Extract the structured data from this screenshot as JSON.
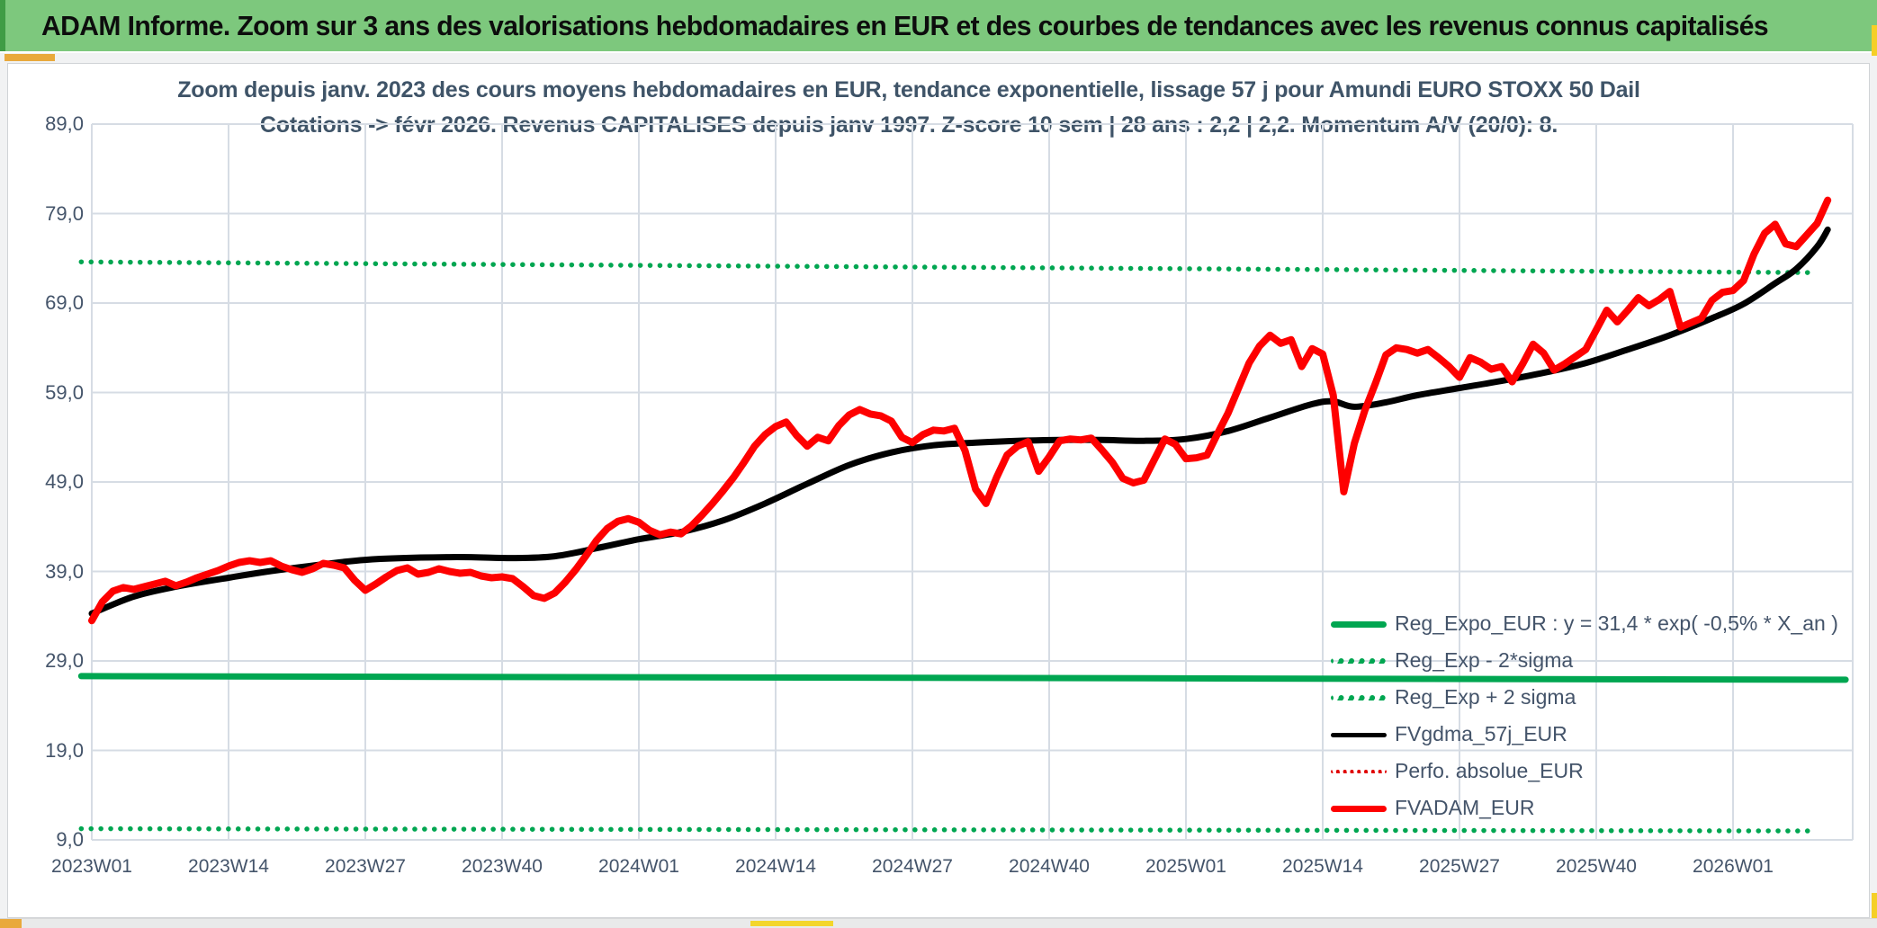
{
  "banner": {
    "title": "ADAM Informe. Zoom sur 3 ans des valorisations hebdomadaires en EUR et des courbes de tendances avec les revenus connus capitalisés"
  },
  "chart_data": {
    "type": "line",
    "title_line1": "Zoom depuis janv. 2023 des cours moyens hebdomadaires en EUR, tendance exponentielle, lissage 57 j pour Amundi EURO STOXX 50 Dail",
    "title_line2": "Cotations -> févr 2026. Revenus CAPITALISES depuis janv 1997. Z-score 10 sem | 28 ans : 2,2 | 2,2. Momentum A/V (20/0): 8.",
    "colors": {
      "green": "#00a651",
      "red": "#fe0000",
      "black": "#000000",
      "grid": "#d6dce4",
      "text": "#44546a"
    },
    "grid": true,
    "legend_position": "inside-right-bottom",
    "ylim": [
      9,
      89
    ],
    "y_tick_values": [
      89,
      79,
      69,
      59,
      49,
      39,
      29,
      19,
      9
    ],
    "y_tick_labels": [
      "89,0",
      "79,0",
      "69,0",
      "59,0",
      "49,0",
      "39,0",
      "29,0",
      "19,0",
      "9,0"
    ],
    "x_tick_labels": [
      "2023W01",
      "2023W14",
      "2023W27",
      "2023W40",
      "2024W01",
      "2024W14",
      "2024W27",
      "2024W40",
      "2025W01",
      "2025W14",
      "2025W27",
      "2025W40",
      "2026W01"
    ],
    "weeks_per_tick": 13,
    "trend_lines": [
      {
        "name": "Reg_Expo_EUR",
        "style": "solid",
        "color": "#00a651",
        "width": 7,
        "wk1": -1,
        "v1": 27.3,
        "wk2": 166.7,
        "v2": 26.9
      },
      {
        "name": "Reg_Exp - 2*sigma",
        "style": "dotted",
        "color": "#00a651",
        "width": 5.5,
        "wk1": -1,
        "v1": 10.25,
        "wk2": 164,
        "v2": 10.0
      },
      {
        "name": "Reg_Exp + 2 sigma",
        "style": "dotted",
        "color": "#00a651",
        "width": 5.5,
        "wk1": -1,
        "v1": 73.6,
        "wk2": 164,
        "v2": 72.4
      }
    ],
    "series": [
      {
        "name": "FVgdma_57j_EUR",
        "color": "#000000",
        "style": "solid",
        "width": 7,
        "anchors_wk": [
          0,
          4,
          8,
          13,
          18,
          26,
          34,
          40,
          44,
          48,
          52,
          56,
          60,
          64,
          68,
          72,
          76,
          80,
          84,
          88,
          92,
          96,
          100,
          104,
          108,
          112,
          116,
          118,
          120,
          123,
          126,
          130,
          134,
          138,
          142,
          146,
          150,
          154,
          157,
          160,
          162,
          164,
          165
        ],
        "anchors_v": [
          34.3,
          36.2,
          37.3,
          38.3,
          39.2,
          40.3,
          40.6,
          40.5,
          40.7,
          41.6,
          42.6,
          43.4,
          44.7,
          46.6,
          48.8,
          50.9,
          52.3,
          53.1,
          53.4,
          53.6,
          53.7,
          53.7,
          53.6,
          53.8,
          54.7,
          56.2,
          57.7,
          58.0,
          57.4,
          57.9,
          58.7,
          59.5,
          60.3,
          61.2,
          62.3,
          63.8,
          65.4,
          67.3,
          68.9,
          71.2,
          72.8,
          75.3,
          77.2
        ]
      },
      {
        "name": "FVADAM_EUR",
        "color": "#fe0000",
        "style": "solid",
        "width": 8,
        "start_wk": 0,
        "values": [
          33.5,
          35.6,
          36.8,
          37.2,
          37.0,
          37.3,
          37.6,
          37.9,
          37.4,
          37.8,
          38.3,
          38.7,
          39.1,
          39.6,
          40.0,
          40.2,
          40.0,
          40.2,
          39.6,
          39.2,
          38.9,
          39.3,
          39.9,
          39.7,
          39.4,
          38.0,
          36.9,
          37.6,
          38.4,
          39.1,
          39.4,
          38.7,
          38.9,
          39.3,
          39.0,
          38.8,
          38.9,
          38.5,
          38.3,
          38.4,
          38.2,
          37.3,
          36.3,
          36.0,
          36.6,
          37.8,
          39.2,
          40.8,
          42.5,
          43.8,
          44.6,
          44.9,
          44.5,
          43.6,
          43.1,
          43.4,
          43.2,
          44.1,
          45.3,
          46.6,
          48.0,
          49.5,
          51.2,
          53.0,
          54.3,
          55.2,
          55.7,
          54.2,
          53.0,
          54.0,
          53.6,
          55.3,
          56.5,
          57.1,
          56.6,
          56.4,
          55.8,
          54.0,
          53.4,
          54.3,
          54.8,
          54.7,
          55.0,
          52.5,
          48.2,
          46.6,
          49.5,
          52.0,
          53.0,
          53.5,
          50.2,
          51.8,
          53.6,
          53.8,
          53.7,
          53.9,
          52.6,
          51.2,
          49.4,
          48.9,
          49.2,
          51.5,
          53.8,
          53.2,
          51.6,
          51.7,
          52.0,
          54.4,
          56.7,
          59.5,
          62.3,
          64.2,
          65.4,
          64.5,
          64.9,
          61.9,
          63.9,
          63.3,
          58.7,
          47.9,
          53.3,
          57.0,
          60.0,
          63.2,
          64.0,
          63.8,
          63.4,
          63.8,
          62.9,
          61.9,
          60.7,
          62.9,
          62.4,
          61.6,
          61.9,
          60.2,
          62.2,
          64.4,
          63.4,
          61.5,
          62.2,
          63.0,
          63.8,
          66.0,
          68.2,
          66.9,
          68.2,
          69.6,
          68.7,
          69.4,
          70.3,
          66.3,
          66.8,
          67.3,
          69.3,
          70.2,
          70.4,
          71.5,
          74.5,
          76.8,
          77.8,
          75.6,
          75.3,
          76.6,
          77.9,
          80.5
        ]
      }
    ],
    "legend": [
      {
        "label": "Reg_Expo_EUR : y = 31,4 * exp( -0,5% *  X_an )",
        "swatch": "green-solid"
      },
      {
        "label": "Reg_Exp - 2*sigma",
        "swatch": "green-dot"
      },
      {
        "label": "Reg_Exp + 2 sigma",
        "swatch": "green-dot"
      },
      {
        "label": "FVgdma_57j_EUR",
        "swatch": "black-solid"
      },
      {
        "label": "Perfo. absolue_EUR",
        "swatch": "red-dot"
      },
      {
        "label": "FVADAM_EUR",
        "swatch": "red-solid"
      }
    ]
  }
}
